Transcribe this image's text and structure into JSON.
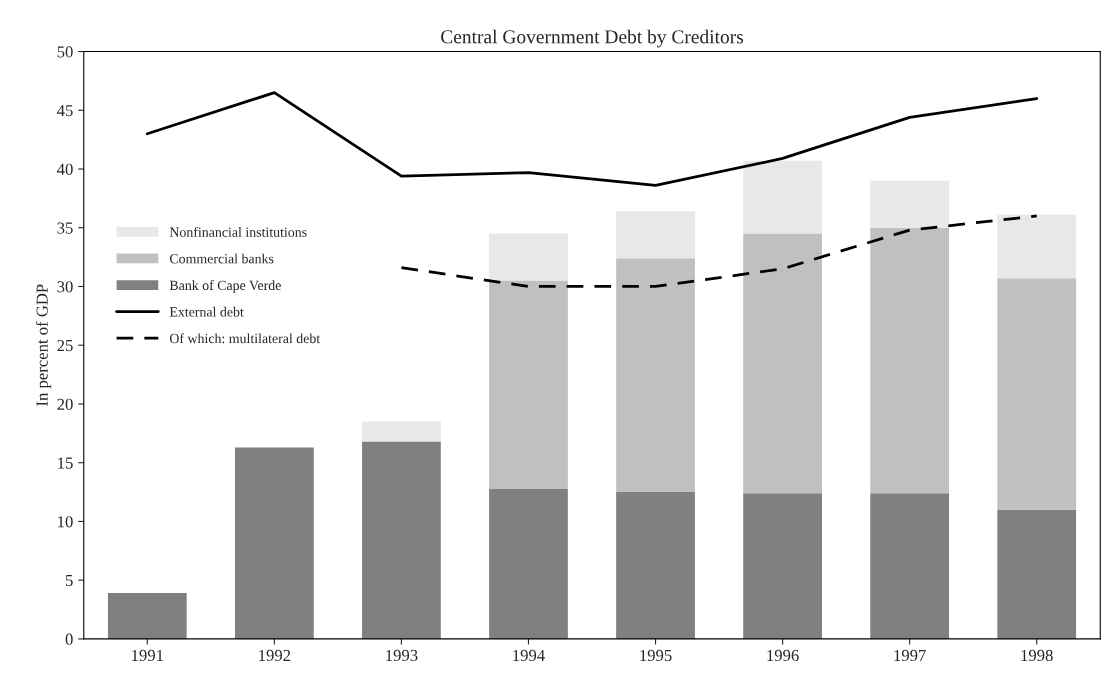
{
  "chart_data": {
    "type": "bar",
    "title": "Central Government Debt by Creditors",
    "ylabel": "In percent of GDP",
    "categories": [
      "1991",
      "1992",
      "1993",
      "1994",
      "1995",
      "1996",
      "1997",
      "1998"
    ],
    "stacked": true,
    "series": [
      {
        "name": "Bank of Cape Verde",
        "color": "#808080",
        "values": [
          3.9,
          16.3,
          16.8,
          12.8,
          12.5,
          12.4,
          12.4,
          11.0
        ]
      },
      {
        "name": "Commercial banks",
        "color": "#c0c0c0",
        "values": [
          0,
          0,
          0,
          17.7,
          19.9,
          22.1,
          22.6,
          19.7
        ]
      },
      {
        "name": "Nonfinancial institutions",
        "color": "#e8e8e8",
        "values": [
          0,
          0,
          1.7,
          4.0,
          4.0,
          6.2,
          4.0,
          5.4
        ]
      },
      {
        "name": "External debt",
        "type": "line",
        "color": "#000000",
        "line_style": "solid",
        "values": [
          43.0,
          46.5,
          39.4,
          39.7,
          38.6,
          40.9,
          44.4,
          46.0
        ]
      },
      {
        "name": "Of which: multilateral debt",
        "type": "line",
        "color": "#000000",
        "line_style": "dashed",
        "values": [
          null,
          null,
          31.6,
          30.0,
          30.0,
          31.5,
          34.8,
          36.0
        ]
      }
    ],
    "ylim": [
      0,
      50
    ],
    "yticks": [
      0,
      5,
      10,
      15,
      20,
      25,
      30,
      35,
      40,
      45,
      50
    ],
    "legend": "left",
    "grid": false
  }
}
